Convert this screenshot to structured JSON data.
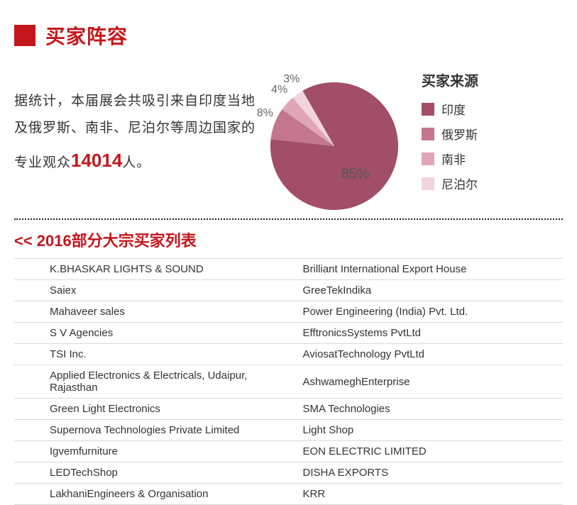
{
  "header": {
    "title": "买家阵容"
  },
  "intro": {
    "prefix": "据统计，本届展会共吸引来自印度当地及俄罗斯、南非、尼泊尔等周边国家的专业观众",
    "number": "14014",
    "suffix": "人。"
  },
  "chart": {
    "type": "pie",
    "background_color": "#ffffff",
    "slices": [
      {
        "label": "印度",
        "value": 85,
        "color": "#a14e66",
        "pct_text": "85%"
      },
      {
        "label": "俄罗斯",
        "value": 8,
        "color": "#c4768c",
        "pct_text": "8%"
      },
      {
        "label": "南非",
        "value": 4,
        "color": "#e0a6b7",
        "pct_text": "4%"
      },
      {
        "label": "尼泊尔",
        "value": 3,
        "color": "#f1d4dc",
        "pct_text": "3%"
      }
    ],
    "label_fontsize": 16,
    "label_color": "#666666",
    "legend_title": "买家来源",
    "legend_title_fontsize": 20,
    "legend_fontsize": 17
  },
  "subheader": "<< 2016部分大宗买家列表",
  "table": {
    "border_color": "#d9d9d9",
    "fontsize": 15,
    "rows": [
      [
        "K.BHASKAR LIGHTS & SOUND",
        "Brilliant International Export House"
      ],
      [
        "Saiex",
        "GreeTekIndika"
      ],
      [
        "Mahaveer sales",
        "Power Engineering (India) Pvt. Ltd."
      ],
      [
        "S V Agencies",
        "EfftronicsSystems PvtLtd"
      ],
      [
        "TSI Inc.",
        "AviosatTechnology PvtLtd"
      ],
      [
        "Applied Electronics & Electricals, Udaipur, Rajasthan",
        "AshwameghEnterprise"
      ],
      [
        "Green Light Electronics",
        "SMA Technologies"
      ],
      [
        "Supernova Technologies Private Limited",
        "Light Shop"
      ],
      [
        "Igvemfurniture",
        "EON ELECTRIC LIMITED"
      ],
      [
        "LEDTechShop",
        "DISHA EXPORTS"
      ],
      [
        "LakhaniEngineers & Organisation",
        "KRR"
      ]
    ]
  }
}
